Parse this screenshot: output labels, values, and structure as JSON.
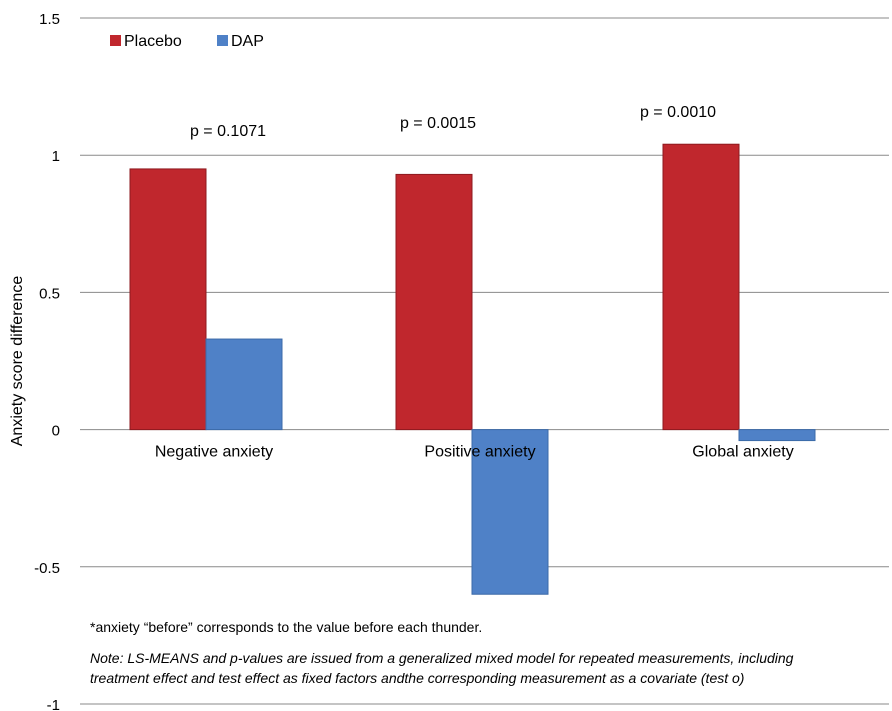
{
  "chart_data": {
    "type": "bar",
    "categories": [
      "Negative anxiety",
      "Positive anxiety",
      "Global anxiety"
    ],
    "series": [
      {
        "name": "Placebo",
        "color": "#c0272d",
        "values": [
          0.95,
          0.93,
          1.04
        ]
      },
      {
        "name": "DAP",
        "color": "#4f81c7",
        "values": [
          0.33,
          -0.6,
          -0.04
        ]
      }
    ],
    "annotations": [
      "p = 0.1071",
      "p = 0.0015",
      "p = 0.0010"
    ],
    "title": "",
    "xlabel": "",
    "ylabel": "Anxiety score difference",
    "ylim": [
      -1,
      1.5
    ],
    "yticks": [
      "-1",
      "-0.5",
      "0",
      "0.5",
      "1",
      "1.5"
    ],
    "grid": true,
    "legend": "top-left"
  },
  "notes": {
    "footnote": "*anxiety “before” corresponds to the value before each thunder.",
    "model_note_line1": "Note: LS-MEANS and p-values are issued from a generalized mixed model for repeated measurements, including",
    "model_note_line2": "treatment effect and test effect as fixed factors andthe corresponding measurement as a covariate (test o)"
  }
}
